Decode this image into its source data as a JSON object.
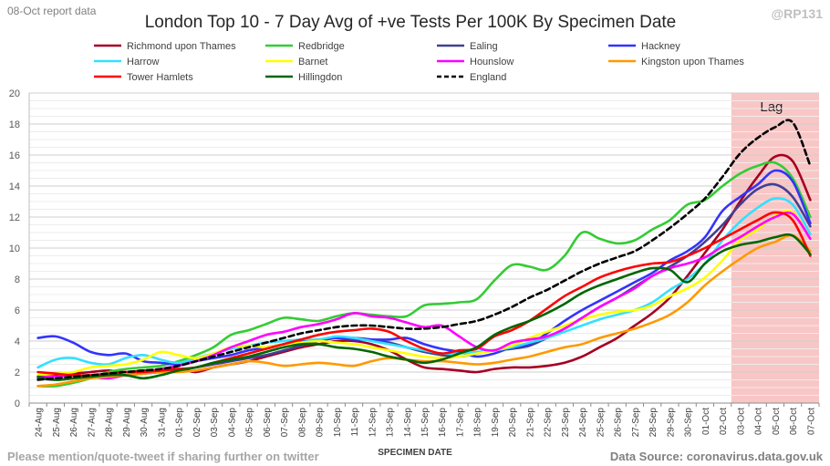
{
  "header": {
    "report_note": "08-Oct report data",
    "handle": "@RP131"
  },
  "footer": {
    "left_note": "Please mention/quote-tweet if sharing further on twitter",
    "source": "Data Source: coronavirus.data.gov.uk"
  },
  "colors": {
    "lag_fill": "#f9c6c6",
    "grid": "#d9d9d9",
    "axis": "#595959"
  },
  "chart_data": {
    "type": "line",
    "title": "London Top 10 - 7 Day Avg of +ve Tests Per 100K By Specimen Date",
    "xlabel": "SPECIMEN DATE",
    "ylabel": "",
    "ylim": [
      0,
      20
    ],
    "yticks": [
      0,
      2,
      4,
      6,
      8,
      10,
      12,
      14,
      16,
      18,
      20
    ],
    "grid": true,
    "legend_position": "top",
    "categories": [
      "24-Aug",
      "25-Aug",
      "26-Aug",
      "27-Aug",
      "28-Aug",
      "29-Aug",
      "30-Aug",
      "31-Aug",
      "01-Sep",
      "02-Sep",
      "03-Sep",
      "04-Sep",
      "05-Sep",
      "06-Sep",
      "07-Sep",
      "08-Sep",
      "09-Sep",
      "10-Sep",
      "11-Sep",
      "12-Sep",
      "13-Sep",
      "14-Sep",
      "15-Sep",
      "16-Sep",
      "17-Sep",
      "18-Sep",
      "19-Sep",
      "20-Sep",
      "21-Sep",
      "22-Sep",
      "23-Sep",
      "24-Sep",
      "25-Sep",
      "26-Sep",
      "27-Sep",
      "28-Sep",
      "29-Sep",
      "30-Sep",
      "01-Oct",
      "02-Oct",
      "03-Oct",
      "04-Oct",
      "05-Oct",
      "06-Oct",
      "07-Oct"
    ],
    "lag_region": {
      "from": "03-Oct",
      "to": "07-Oct",
      "label": "Lag"
    },
    "series": [
      {
        "name": "Richmond upon Thames",
        "color": "#a50021",
        "dashed": false,
        "values": [
          1.6,
          1.8,
          1.9,
          2.0,
          2.1,
          2.0,
          2.1,
          2.1,
          2.2,
          2.0,
          2.3,
          2.5,
          2.7,
          3.0,
          3.3,
          3.6,
          3.8,
          4.0,
          4.0,
          3.8,
          3.4,
          2.8,
          2.3,
          2.2,
          2.1,
          2.0,
          2.2,
          2.3,
          2.3,
          2.4,
          2.6,
          3.0,
          3.6,
          4.2,
          5.0,
          5.8,
          6.8,
          8.2,
          9.7,
          11.2,
          13.0,
          14.6,
          15.9,
          15.6,
          13.1
        ]
      },
      {
        "name": "Redbridge",
        "color": "#33cc33",
        "dashed": false,
        "values": [
          1.1,
          1.1,
          1.3,
          1.6,
          2.0,
          2.2,
          2.3,
          2.4,
          2.7,
          3.1,
          3.6,
          4.4,
          4.7,
          5.1,
          5.5,
          5.4,
          5.3,
          5.6,
          5.8,
          5.7,
          5.6,
          5.6,
          6.3,
          6.4,
          6.5,
          6.7,
          7.9,
          8.9,
          8.8,
          8.6,
          9.5,
          11.0,
          10.6,
          10.3,
          10.5,
          11.2,
          11.8,
          12.8,
          13.1,
          14.0,
          14.8,
          15.3,
          15.5,
          14.5,
          12.0
        ]
      },
      {
        "name": "Ealing",
        "color": "#404096",
        "dashed": false,
        "values": [
          1.6,
          1.5,
          1.6,
          1.7,
          1.8,
          1.8,
          1.9,
          2.0,
          2.1,
          2.3,
          2.5,
          2.7,
          2.9,
          3.1,
          3.4,
          3.7,
          4.0,
          4.2,
          4.2,
          4.1,
          3.9,
          3.6,
          3.3,
          3.1,
          3.0,
          3.2,
          3.4,
          3.5,
          3.7,
          4.2,
          4.8,
          5.5,
          6.2,
          6.8,
          7.5,
          8.2,
          8.8,
          9.5,
          10.4,
          11.5,
          12.8,
          13.8,
          14.1,
          13.3,
          11.4
        ]
      },
      {
        "name": "Hackney",
        "color": "#3333ff",
        "dashed": false,
        "values": [
          4.2,
          4.3,
          3.9,
          3.3,
          3.1,
          3.2,
          2.7,
          2.6,
          2.5,
          2.7,
          2.9,
          3.1,
          3.4,
          3.6,
          3.8,
          4.0,
          4.1,
          4.2,
          4.1,
          4.1,
          4.1,
          4.2,
          3.8,
          3.5,
          3.3,
          3.0,
          3.2,
          3.6,
          3.8,
          4.5,
          5.3,
          6.0,
          6.6,
          7.2,
          7.8,
          8.4,
          9.2,
          9.8,
          10.7,
          12.4,
          13.3,
          14.1,
          15.0,
          14.3,
          11.6
        ]
      },
      {
        "name": "Harrow",
        "color": "#33e0ff",
        "dashed": false,
        "values": [
          2.3,
          2.8,
          2.9,
          2.6,
          2.5,
          2.9,
          3.1,
          2.8,
          2.6,
          2.9,
          3.2,
          3.5,
          3.7,
          3.9,
          4.0,
          4.1,
          4.1,
          4.3,
          4.2,
          4.0,
          3.8,
          3.6,
          3.4,
          3.2,
          3.2,
          3.3,
          3.4,
          3.6,
          3.9,
          4.2,
          4.6,
          5.0,
          5.4,
          5.7,
          6.0,
          6.5,
          7.3,
          8.0,
          9.0,
          10.5,
          11.7,
          12.6,
          13.2,
          12.8,
          10.9
        ]
      },
      {
        "name": "Barnet",
        "color": "#ffff00",
        "dashed": false,
        "values": [
          1.8,
          1.9,
          2.0,
          2.3,
          2.4,
          2.5,
          2.8,
          3.3,
          3.1,
          2.9,
          3.2,
          3.6,
          3.7,
          3.6,
          3.8,
          3.9,
          4.0,
          3.9,
          3.8,
          3.6,
          3.4,
          3.2,
          3.0,
          2.9,
          3.0,
          3.2,
          3.4,
          3.7,
          4.2,
          4.6,
          5.0,
          5.4,
          5.7,
          5.9,
          6.0,
          6.3,
          6.9,
          7.4,
          8.1,
          9.2,
          10.5,
          11.2,
          12.1,
          12.3,
          10.6
        ]
      },
      {
        "name": "Hounslow",
        "color": "#ff00ff",
        "dashed": false,
        "values": [
          1.7,
          1.7,
          1.8,
          1.7,
          1.6,
          1.8,
          2.0,
          2.2,
          2.4,
          2.7,
          3.1,
          3.6,
          4.0,
          4.4,
          4.6,
          4.9,
          5.1,
          5.4,
          5.8,
          5.6,
          5.5,
          5.2,
          4.9,
          5.0,
          4.3,
          3.6,
          3.4,
          3.9,
          4.1,
          4.3,
          4.8,
          5.5,
          6.2,
          6.8,
          7.4,
          8.2,
          8.7,
          9.0,
          9.4,
          10.1,
          10.7,
          11.4,
          12.0,
          12.2,
          10.6
        ]
      },
      {
        "name": "Kingston upon Thames",
        "color": "#ff9900",
        "dashed": false,
        "values": [
          1.1,
          1.2,
          1.4,
          1.6,
          1.7,
          1.8,
          1.9,
          2.0,
          2.0,
          2.1,
          2.3,
          2.5,
          2.7,
          2.6,
          2.4,
          2.5,
          2.6,
          2.5,
          2.4,
          2.7,
          2.9,
          2.8,
          2.7,
          2.7,
          2.6,
          2.5,
          2.6,
          2.8,
          3.0,
          3.3,
          3.6,
          3.8,
          4.2,
          4.5,
          4.8,
          5.2,
          5.7,
          6.5,
          7.6,
          8.5,
          9.3,
          10.0,
          10.4,
          10.8,
          9.8
        ]
      },
      {
        "name": "Tower Hamlets",
        "color": "#ff0000",
        "dashed": false,
        "values": [
          2.0,
          1.9,
          1.8,
          1.8,
          1.9,
          2.0,
          2.0,
          2.1,
          2.2,
          2.3,
          2.6,
          2.9,
          3.2,
          3.5,
          3.8,
          4.1,
          4.4,
          4.6,
          4.7,
          4.8,
          4.6,
          4.0,
          3.5,
          3.2,
          3.4,
          3.5,
          4.3,
          4.7,
          5.3,
          6.1,
          6.9,
          7.5,
          8.1,
          8.5,
          8.8,
          9.0,
          9.1,
          9.5,
          10.0,
          10.6,
          11.2,
          11.8,
          12.3,
          11.8,
          9.5
        ]
      },
      {
        "name": "Hillingdon",
        "color": "#006600",
        "dashed": false,
        "values": [
          1.7,
          1.5,
          1.6,
          1.7,
          1.8,
          1.8,
          1.6,
          1.8,
          2.1,
          2.3,
          2.6,
          2.8,
          3.0,
          3.3,
          3.6,
          3.8,
          3.8,
          3.6,
          3.5,
          3.3,
          3.0,
          2.8,
          2.6,
          2.8,
          3.2,
          3.6,
          4.4,
          4.9,
          5.3,
          5.8,
          6.4,
          7.1,
          7.6,
          8.0,
          8.4,
          8.7,
          8.6,
          7.8,
          9.0,
          9.8,
          10.2,
          10.4,
          10.7,
          10.8,
          9.6
        ]
      },
      {
        "name": "England",
        "color": "#000000",
        "dashed": true,
        "values": [
          1.5,
          1.6,
          1.7,
          1.8,
          1.9,
          2.0,
          2.1,
          2.2,
          2.4,
          2.7,
          3.0,
          3.3,
          3.6,
          3.9,
          4.2,
          4.5,
          4.7,
          4.9,
          5.0,
          5.0,
          4.9,
          4.8,
          4.8,
          4.9,
          5.1,
          5.3,
          5.7,
          6.2,
          6.8,
          7.3,
          7.9,
          8.5,
          9.0,
          9.4,
          9.8,
          10.5,
          11.3,
          12.2,
          13.2,
          14.6,
          16.1,
          17.1,
          17.8,
          18.1,
          15.3
        ]
      }
    ]
  }
}
